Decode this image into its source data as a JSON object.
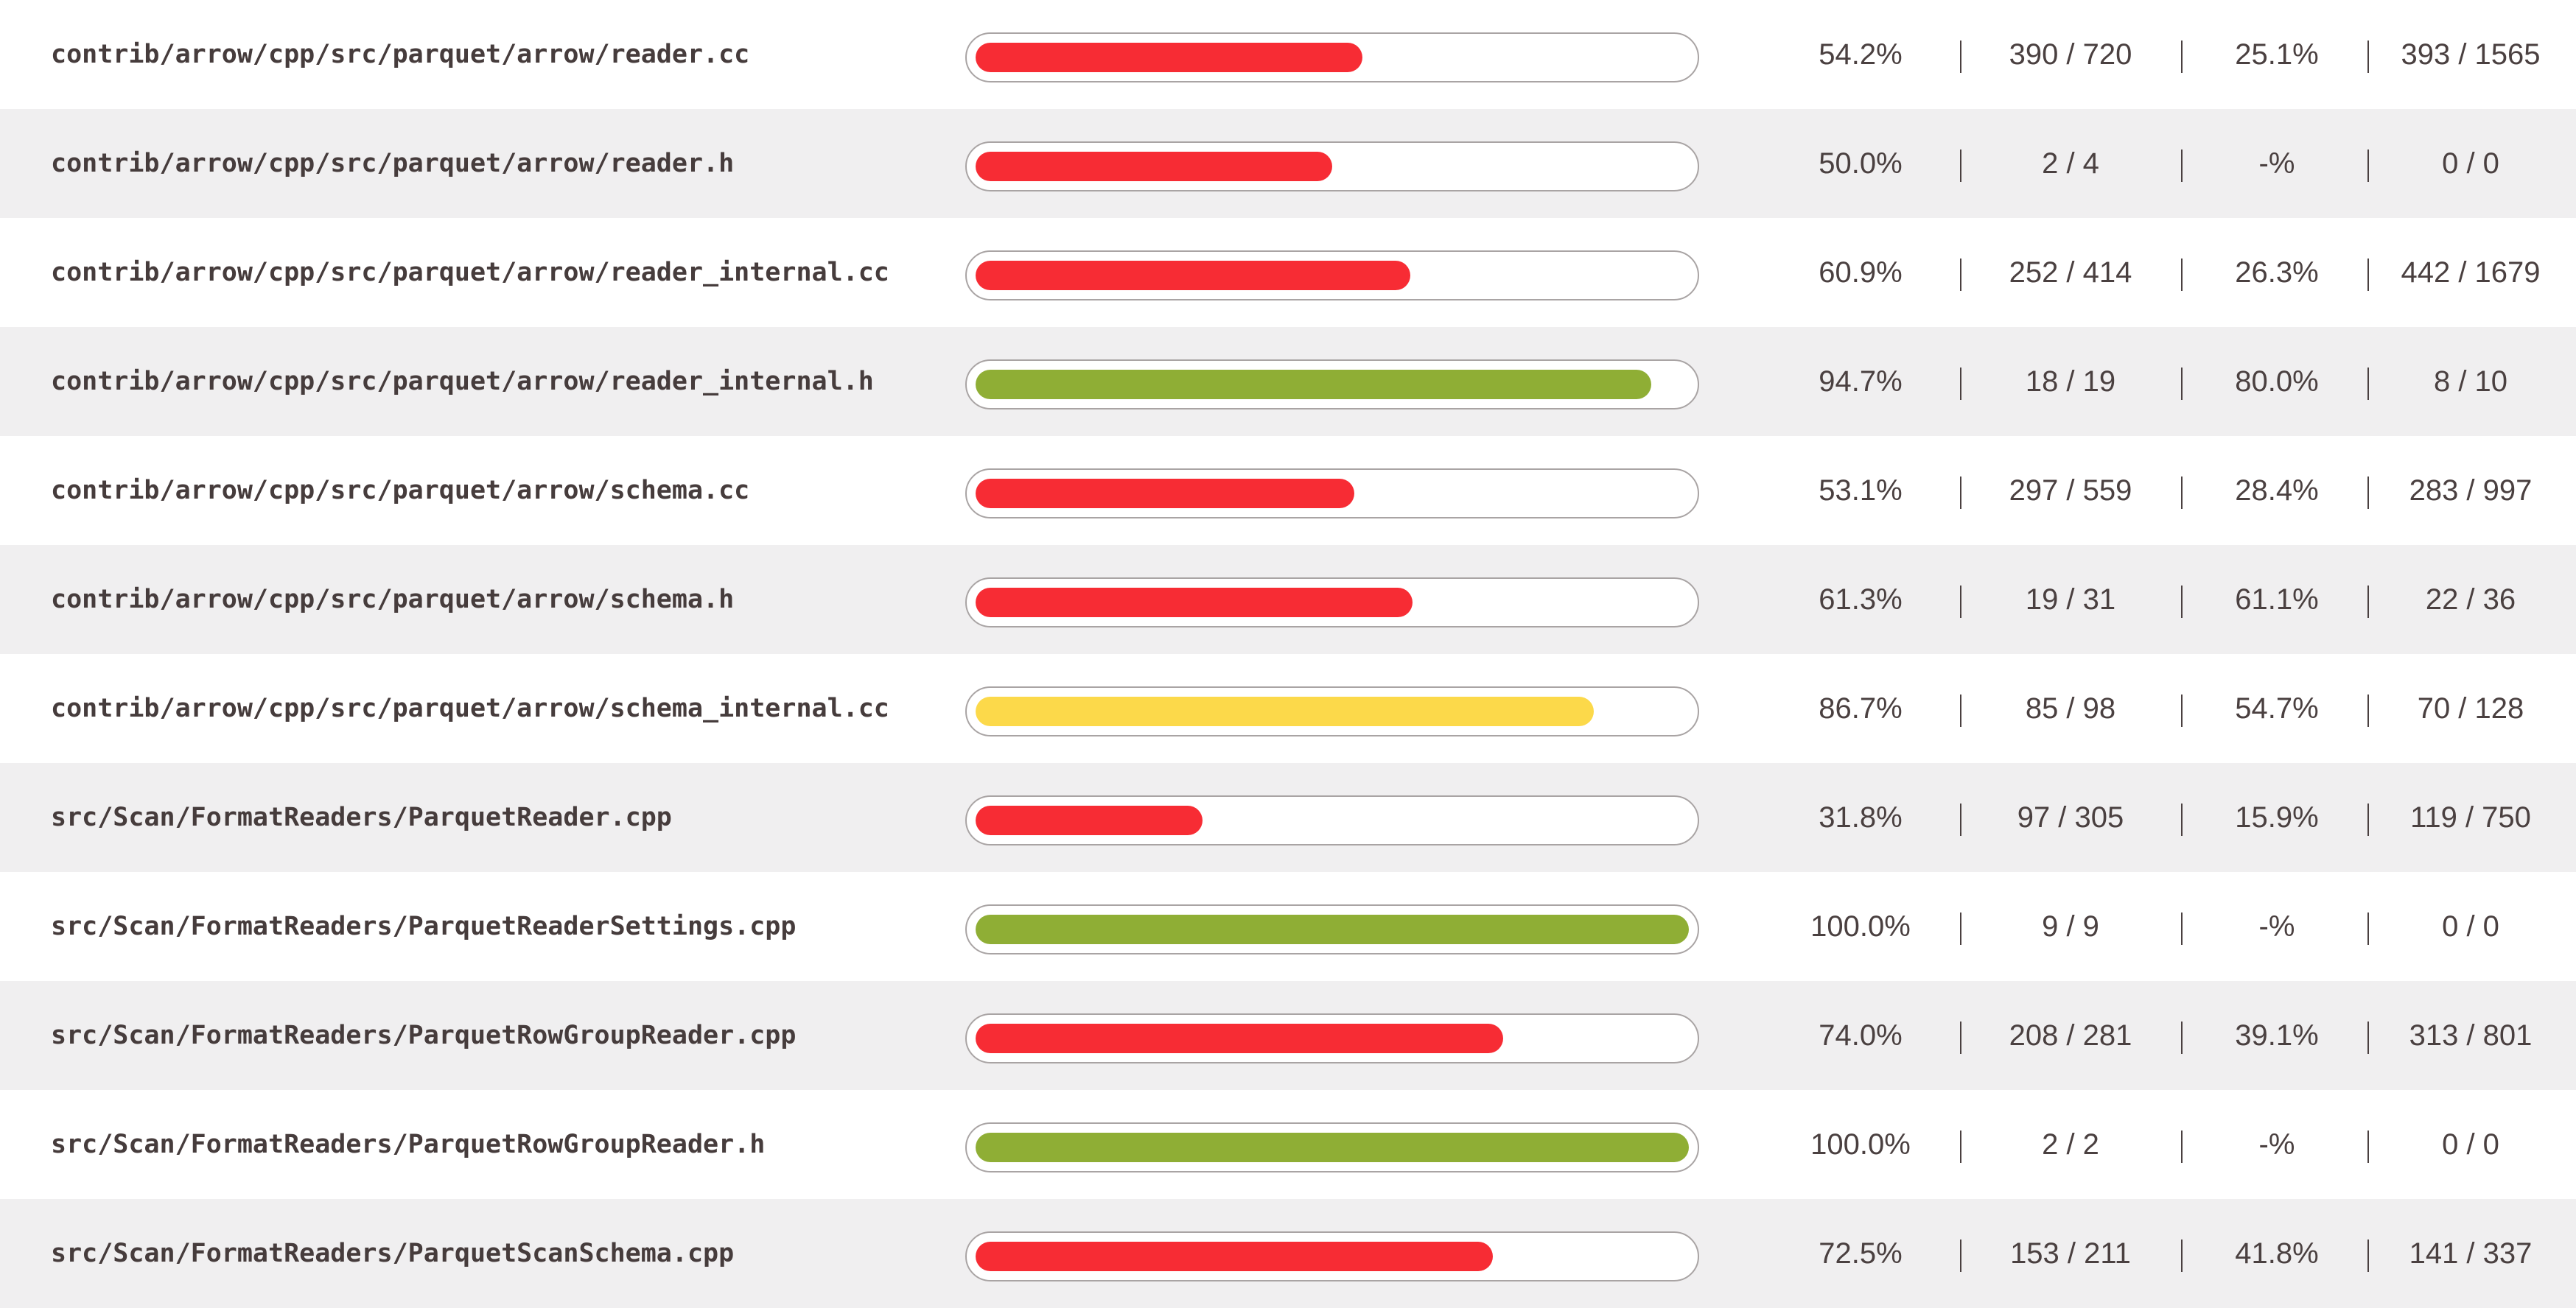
{
  "colors": {
    "low": "#f72c34",
    "medium": "#fcd94a",
    "high": "#8fae35",
    "row_alt_background": "#f0eff0",
    "text": "#4a4040"
  },
  "rows": [
    {
      "file": "contrib/arrow/cpp/src/parquet/arrow/reader.cc",
      "line_coverage_pct": 54.2,
      "line_coverage": "54.2%",
      "lines_hit": "390 / 720",
      "function_coverage": "25.1%",
      "functions_hit": "393 / 1565",
      "level": "low"
    },
    {
      "file": "contrib/arrow/cpp/src/parquet/arrow/reader.h",
      "line_coverage_pct": 50.0,
      "line_coverage": "50.0%",
      "lines_hit": "2 / 4",
      "function_coverage": "-%",
      "functions_hit": "0 / 0",
      "level": "low"
    },
    {
      "file": "contrib/arrow/cpp/src/parquet/arrow/reader_internal.cc",
      "line_coverage_pct": 60.9,
      "line_coverage": "60.9%",
      "lines_hit": "252 / 414",
      "function_coverage": "26.3%",
      "functions_hit": "442 / 1679",
      "level": "low"
    },
    {
      "file": "contrib/arrow/cpp/src/parquet/arrow/reader_internal.h",
      "line_coverage_pct": 94.7,
      "line_coverage": "94.7%",
      "lines_hit": "18 / 19",
      "function_coverage": "80.0%",
      "functions_hit": "8 / 10",
      "level": "high"
    },
    {
      "file": "contrib/arrow/cpp/src/parquet/arrow/schema.cc",
      "line_coverage_pct": 53.1,
      "line_coverage": "53.1%",
      "lines_hit": "297 / 559",
      "function_coverage": "28.4%",
      "functions_hit": "283 / 997",
      "level": "low"
    },
    {
      "file": "contrib/arrow/cpp/src/parquet/arrow/schema.h",
      "line_coverage_pct": 61.3,
      "line_coverage": "61.3%",
      "lines_hit": "19 / 31",
      "function_coverage": "61.1%",
      "functions_hit": "22 / 36",
      "level": "low"
    },
    {
      "file": "contrib/arrow/cpp/src/parquet/arrow/schema_internal.cc",
      "line_coverage_pct": 86.7,
      "line_coverage": "86.7%",
      "lines_hit": "85 / 98",
      "function_coverage": "54.7%",
      "functions_hit": "70 / 128",
      "level": "medium"
    },
    {
      "file": "src/Scan/FormatReaders/ParquetReader.cpp",
      "line_coverage_pct": 31.8,
      "line_coverage": "31.8%",
      "lines_hit": "97 / 305",
      "function_coverage": "15.9%",
      "functions_hit": "119 / 750",
      "level": "low"
    },
    {
      "file": "src/Scan/FormatReaders/ParquetReaderSettings.cpp",
      "line_coverage_pct": 100.0,
      "line_coverage": "100.0%",
      "lines_hit": "9 / 9",
      "function_coverage": "-%",
      "functions_hit": "0 / 0",
      "level": "high"
    },
    {
      "file": "src/Scan/FormatReaders/ParquetRowGroupReader.cpp",
      "line_coverage_pct": 74.0,
      "line_coverage": "74.0%",
      "lines_hit": "208 / 281",
      "function_coverage": "39.1%",
      "functions_hit": "313 / 801",
      "level": "low"
    },
    {
      "file": "src/Scan/FormatReaders/ParquetRowGroupReader.h",
      "line_coverage_pct": 100.0,
      "line_coverage": "100.0%",
      "lines_hit": "2 / 2",
      "function_coverage": "-%",
      "functions_hit": "0 / 0",
      "level": "high"
    },
    {
      "file": "src/Scan/FormatReaders/ParquetScanSchema.cpp",
      "line_coverage_pct": 72.5,
      "line_coverage": "72.5%",
      "lines_hit": "153 / 211",
      "function_coverage": "41.8%",
      "functions_hit": "141 / 337",
      "level": "low"
    }
  ]
}
